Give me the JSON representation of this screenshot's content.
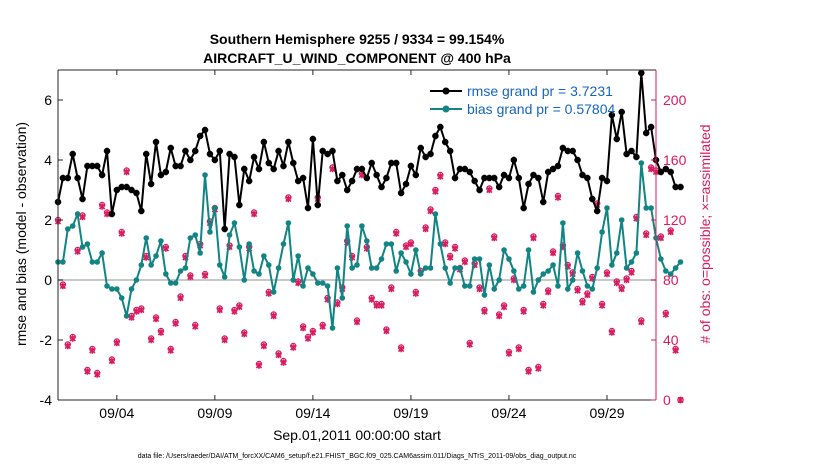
{
  "chart_data": {
    "type": "line",
    "title": "Southern Hemisphere 9255 / 9334 = 99.154%",
    "subtitle": "AIRCRAFT_U_WIND_COMPONENT @ 400 hPa",
    "xlabel": "Sep.01,2011 00:00:00 start",
    "ylabel_left": "rmse and bias (model - observation)",
    "ylabel_right": "# of obs: o=possible; ×=assimilated",
    "footnote": "data file: /Users/raeder/DAI/ATM_forcXX/CAM6_setup/f.e21.FHIST_BGC.f09_025.CAM6assim.011/Diags_NTrS_2011-09/obs_diag_output.nc",
    "xlim": [
      1,
      31.5
    ],
    "ylim_left": [
      -4,
      7
    ],
    "ylim_right": [
      0,
      220
    ],
    "x_ticks": [
      {
        "day": 4,
        "label": "09/04"
      },
      {
        "day": 9,
        "label": "09/09"
      },
      {
        "day": 14,
        "label": "09/14"
      },
      {
        "day": 19,
        "label": "09/19"
      },
      {
        "day": 24,
        "label": "09/24"
      },
      {
        "day": 29,
        "label": "09/29"
      }
    ],
    "y_ticks_left": [
      -4,
      -2,
      0,
      2,
      4,
      6
    ],
    "y_ticks_right": [
      0,
      40,
      80,
      120,
      160,
      200
    ],
    "x_start_day": 1.0,
    "x_step_days": 0.25,
    "series": [
      {
        "name": "rmse",
        "legend": "rmse grand pr = 3.7231",
        "color": "#000000",
        "values": [
          2.6,
          3.4,
          3.4,
          4.2,
          3.4,
          2.7,
          3.8,
          3.8,
          3.8,
          3.5,
          4.3,
          2.2,
          3.0,
          3.1,
          3.1,
          3.0,
          2.9,
          2.3,
          4.2,
          3.2,
          4.6,
          3.5,
          3.6,
          4.4,
          3.8,
          3.8,
          4.3,
          4.0,
          4.3,
          4.8,
          5.0,
          4.2,
          4.0,
          4.3,
          1.7,
          4.2,
          4.1,
          2.5,
          3.7,
          3.3,
          4.1,
          3.7,
          4.6,
          3.9,
          3.7,
          4.3,
          3.8,
          4.6,
          3.9,
          3.3,
          3.4,
          2.4,
          4.7,
          2.5,
          4.3,
          4.2,
          4.3,
          3.3,
          3.5,
          3.0,
          3.3,
          3.7,
          3.7,
          3.4,
          3.9,
          3.5,
          3.1,
          3.4,
          3.9,
          3.9,
          2.9,
          3.2,
          3.8,
          3.5,
          4.4,
          4.1,
          4.2,
          4.8,
          5.1,
          4.6,
          4.3,
          3.4,
          3.7,
          3.7,
          3.6,
          3.3,
          3.0,
          3.4,
          3.4,
          3.4,
          3.1,
          3.5,
          3.4,
          4.0,
          3.4,
          2.4,
          3.2,
          3.5,
          3.4,
          2.6,
          3.6,
          3.7,
          3.8,
          4.4,
          4.3,
          4.3,
          4.0,
          3.5,
          3.4,
          2.7,
          2.3,
          3.4,
          3.3,
          5.5,
          4.7,
          5.6,
          4.2,
          4.3,
          4.1,
          6.9,
          4.9,
          5.1,
          4.0,
          3.6,
          3.7,
          3.6,
          3.1,
          3.1
        ],
        "marker": "star"
      },
      {
        "name": "bias",
        "legend": "bias grand pr = 0.57804",
        "color": "#128483",
        "values": [
          0.6,
          0.6,
          1.7,
          1.8,
          2.2,
          1.1,
          1.2,
          0.6,
          0.6,
          0.9,
          -0.2,
          -0.3,
          -0.3,
          -0.6,
          -1.2,
          -0.3,
          0.0,
          0.5,
          1.4,
          0.5,
          0.8,
          1.3,
          0.2,
          -0.1,
          -0.1,
          0.3,
          0.4,
          1.4,
          1.5,
          0.9,
          3.5,
          1.6,
          2.4,
          0.5,
          0.1,
          1.5,
          1.9,
          1.1,
          0.0,
          1.2,
          0.3,
          0.2,
          0.8,
          0.5,
          -0.4,
          0.4,
          1.2,
          1.9,
          0.0,
          0.8,
          -0.2,
          0.4,
          0.2,
          -0.1,
          -0.1,
          -0.2,
          -1.6,
          0.4,
          -0.6,
          1.8,
          0.4,
          0.5,
          1.8,
          1.3,
          0.4,
          0.4,
          0.7,
          1.2,
          1.2,
          0.3,
          0.9,
          0.6,
          0.2,
          1.0,
          0.2,
          0.4,
          0.4,
          2.2,
          1.2,
          0.4,
          -0.1,
          0.4,
          0.4,
          -0.2,
          -0.2,
          0.7,
          0.7,
          -0.5,
          0.5,
          -0.3,
          0.0,
          1.0,
          0.7,
          0.3,
          -0.3,
          -0.2,
          1.0,
          -0.4,
          0.0,
          0.2,
          0.3,
          0.5,
          -0.2,
          1.9,
          -0.3,
          0.0,
          0.9,
          0.3,
          -0.2,
          -0.3,
          0.4,
          1.6,
          2.4,
          0.5,
          0.9,
          2.0,
          0.4,
          0.6,
          0.9,
          3.9,
          2.4,
          2.4,
          1.4,
          0.7,
          0.3,
          0.2,
          0.4,
          0.6
        ],
        "marker": "circle"
      }
    ],
    "obs_possible_color": "#d81b60",
    "obs_possible": [
      120,
      77,
      37,
      42,
      100,
      123,
      20,
      34,
      18,
      130,
      125,
      27,
      39,
      112,
      153,
      56,
      60,
      61,
      96,
      41,
      55,
      46,
      102,
      34,
      52,
      69,
      96,
      83,
      50,
      104,
      84,
      119,
      128,
      61,
      41,
      103,
      60,
      63,
      45,
      102,
      125,
      24,
      37,
      72,
      57,
      31,
      26,
      135,
      36,
      79,
      49,
      42,
      46,
      135,
      50,
      68,
      155,
      65,
      75,
      106,
      96,
      53,
      151,
      102,
      68,
      64,
      64,
      47,
      75,
      112,
      35,
      103,
      105,
      72,
      86,
      115,
      127,
      140,
      150,
      105,
      96,
      102,
      88,
      93,
      38,
      91,
      75,
      60,
      141,
      109,
      57,
      63,
      32,
      81,
      35,
      60,
      20,
      109,
      22,
      64,
      73,
      99,
      136,
      103,
      90,
      85,
      74,
      66,
      71,
      82,
      131,
      64,
      85,
      46,
      79,
      75,
      81,
      86,
      122,
      53,
      111,
      155,
      153,
      109,
      58,
      113,
      34,
      0
    ],
    "obs_assimilated": [
      119,
      76,
      36,
      41,
      99,
      122,
      19,
      33,
      17,
      129,
      124,
      26,
      38,
      111,
      152,
      55,
      59,
      60,
      95,
      40,
      54,
      45,
      101,
      33,
      51,
      68,
      95,
      82,
      49,
      103,
      83,
      118,
      127,
      60,
      40,
      102,
      59,
      62,
      44,
      101,
      124,
      23,
      36,
      71,
      56,
      30,
      25,
      134,
      35,
      78,
      48,
      41,
      45,
      134,
      49,
      67,
      154,
      64,
      74,
      105,
      95,
      52,
      150,
      101,
      67,
      63,
      63,
      46,
      74,
      111,
      34,
      102,
      104,
      71,
      85,
      114,
      126,
      139,
      149,
      104,
      95,
      101,
      87,
      92,
      37,
      90,
      74,
      59,
      140,
      108,
      56,
      62,
      31,
      80,
      34,
      59,
      19,
      108,
      21,
      63,
      72,
      98,
      135,
      102,
      89,
      84,
      73,
      65,
      70,
      81,
      130,
      63,
      84,
      45,
      78,
      74,
      80,
      85,
      121,
      52,
      110,
      154,
      152,
      108,
      57,
      112,
      33,
      0
    ]
  }
}
